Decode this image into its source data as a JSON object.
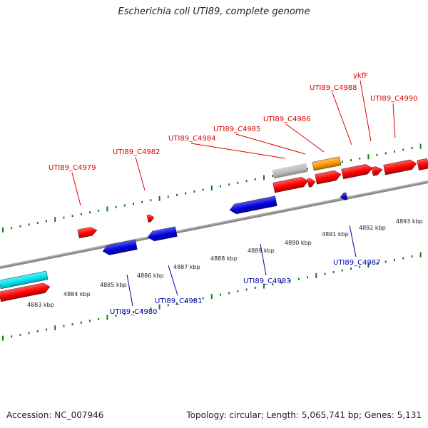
{
  "title": "Escherichia coli UTI89, complete genome",
  "footer": {
    "accession": "Accession: NC_007946",
    "summary": "Topology: circular; Length: 5,065,741 bp; Genes: 5,131"
  },
  "colors": {
    "forward_cds": "#ff0000",
    "reverse_cds": "#0000dd",
    "rna": "#00e5ee",
    "other": "#ff9900",
    "pseudo": "#bbbbbb",
    "backbone": "#888888",
    "ticks": "#1a7a1a",
    "forward_label": "#dd0000",
    "reverse_label": "#0000aa"
  },
  "genome_map": {
    "kbp_labels": [
      "4883 kbp",
      "4884 kbp",
      "4885 kbp",
      "4886 kbp",
      "4887 kbp",
      "4888 kbp",
      "4889 kbp",
      "4890 kbp",
      "4891 kbp",
      "4892 kbp",
      "4893 kbp"
    ],
    "forward_labels": [
      {
        "text": "UTI89_C4979"
      },
      {
        "text": "UTI89_C4982"
      },
      {
        "text": "UTI89_C4984"
      },
      {
        "text": "UTI89_C4985"
      },
      {
        "text": "UTI89_C4986"
      },
      {
        "text": "UTI89_C4988"
      },
      {
        "text": "ykfF"
      },
      {
        "text": "UTI89_C4990"
      }
    ],
    "reverse_labels": [
      {
        "text": "UTI89_C4980"
      },
      {
        "text": "UTI89_C4981"
      },
      {
        "text": "UTI89_C4983"
      },
      {
        "text": "UTI89_C4987"
      }
    ]
  }
}
